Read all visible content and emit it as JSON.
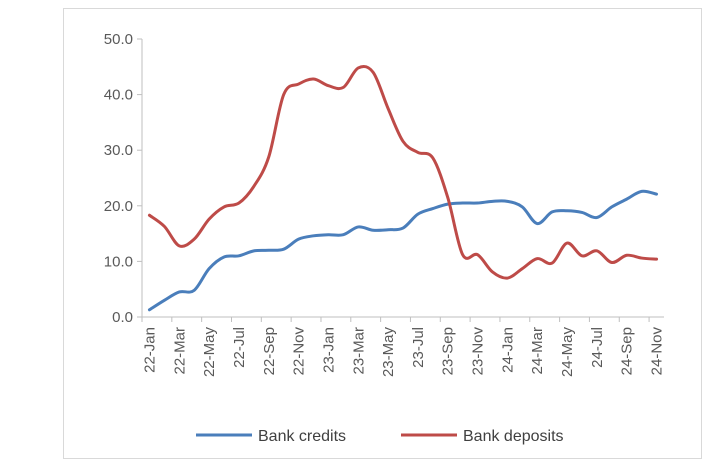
{
  "chart_data": {
    "type": "line",
    "title": "",
    "xlabel": "",
    "ylabel": "",
    "ylim": [
      0,
      50
    ],
    "y_ticks": [
      "0.0",
      "10.0",
      "20.0",
      "30.0",
      "40.0",
      "50.0"
    ],
    "grid": false,
    "legend_position": "bottom",
    "x": [
      "22-Jan",
      "22-Feb",
      "22-Mar",
      "22-Apr",
      "22-May",
      "22-Jun",
      "22-Jul",
      "22-Aug",
      "22-Sep",
      "22-Oct",
      "22-Nov",
      "22-Dec",
      "23-Jan",
      "23-Feb",
      "23-Mar",
      "23-Apr",
      "23-May",
      "23-Jun",
      "23-Jul",
      "23-Aug",
      "23-Sep",
      "23-Oct",
      "23-Nov",
      "23-Dec",
      "24-Jan",
      "24-Feb",
      "24-Mar",
      "24-Apr",
      "24-May",
      "24-Jun",
      "24-Jul",
      "24-Aug",
      "24-Sep",
      "24-Oct",
      "24-Nov"
    ],
    "x_tick_labels": [
      "22-Jan",
      "22-Mar",
      "22-May",
      "22-Jul",
      "22-Sep",
      "22-Nov",
      "23-Jan",
      "23-Mar",
      "23-May",
      "23-Jul",
      "23-Sep",
      "23-Nov",
      "24-Jan",
      "24-Mar",
      "24-May",
      "24-Jul",
      "24-Sep",
      "24-Nov"
    ],
    "series": [
      {
        "name": "Bank credits",
        "color": "#4a7ebb",
        "values": [
          1.3,
          3.0,
          4.5,
          4.8,
          8.7,
          10.8,
          11.0,
          11.9,
          12.0,
          12.2,
          14.0,
          14.6,
          14.8,
          14.8,
          16.2,
          15.6,
          15.7,
          16.0,
          18.5,
          19.5,
          20.3,
          20.5,
          20.5,
          20.8,
          20.8,
          19.8,
          16.8,
          18.9,
          19.1,
          18.8,
          17.9,
          19.8,
          21.2,
          22.6,
          22.1
        ]
      },
      {
        "name": "Bank deposits",
        "color": "#be4b48",
        "values": [
          18.3,
          16.3,
          12.8,
          14.0,
          17.6,
          19.8,
          20.5,
          23.5,
          28.8,
          40.0,
          41.9,
          42.8,
          41.6,
          41.3,
          44.8,
          44.0,
          37.5,
          31.6,
          29.6,
          28.6,
          21.5,
          11.2,
          11.2,
          8.1,
          7.0,
          8.7,
          10.5,
          9.7,
          13.3,
          11.0,
          11.9,
          9.8,
          11.1,
          10.6,
          10.4
        ]
      }
    ]
  }
}
